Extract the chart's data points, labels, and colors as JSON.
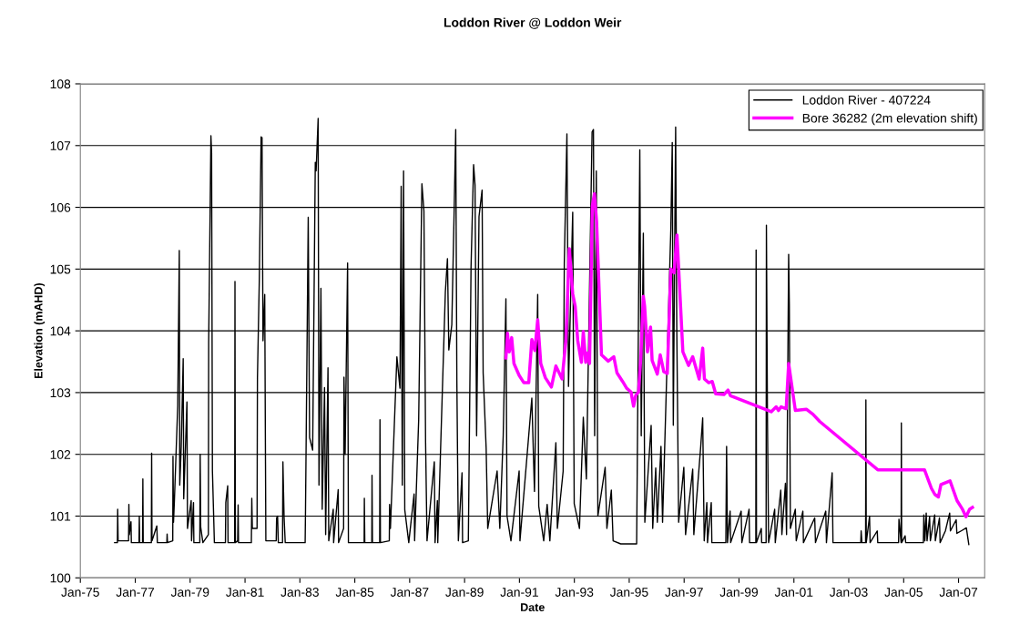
{
  "chart_data": {
    "type": "line",
    "title": "Loddon River @ Loddon Weir",
    "xlabel": "Date",
    "ylabel": "Elevation (mAHD)",
    "xlim": [
      "1975-01-01",
      "2007-12-15"
    ],
    "xticks": [
      {
        "value": "1975-01-01",
        "label": "Jan-75"
      },
      {
        "value": "1977-01-01",
        "label": "Jan-77"
      },
      {
        "value": "1979-01-01",
        "label": "Jan-79"
      },
      {
        "value": "1981-01-01",
        "label": "Jan-81"
      },
      {
        "value": "1983-01-01",
        "label": "Jan-83"
      },
      {
        "value": "1985-01-01",
        "label": "Jan-85"
      },
      {
        "value": "1987-01-01",
        "label": "Jan-87"
      },
      {
        "value": "1989-01-01",
        "label": "Jan-89"
      },
      {
        "value": "1991-01-01",
        "label": "Jan-91"
      },
      {
        "value": "1993-01-01",
        "label": "Jan-93"
      },
      {
        "value": "1995-01-01",
        "label": "Jan-95"
      },
      {
        "value": "1997-01-01",
        "label": "Jan-97"
      },
      {
        "value": "1999-01-01",
        "label": "Jan-99"
      },
      {
        "value": "2001-01-01",
        "label": "Jan-01"
      },
      {
        "value": "2003-01-01",
        "label": "Jan-03"
      },
      {
        "value": "2005-01-01",
        "label": "Jan-05"
      },
      {
        "value": "2007-01-01",
        "label": "Jan-07"
      }
    ],
    "ylim": [
      100,
      108
    ],
    "yticks": [
      100,
      101,
      102,
      103,
      104,
      105,
      106,
      107,
      108
    ],
    "grid": "y",
    "legend": "top right",
    "marker": "none",
    "line_style": "solid",
    "series": [
      {
        "name": "Loddon River - 407224",
        "color": "#000000",
        "x": [
          "1976-04-01",
          "1976-05-08",
          "1976-05-12",
          "1976-05-18",
          "1976-10-04",
          "1976-10-08",
          "1976-10-14",
          "1976-11-05",
          "1976-11-10",
          "1977-02-20",
          "1977-02-24",
          "1977-03-01",
          "1977-04-08",
          "1977-04-12",
          "1977-04-17",
          "1977-08-03",
          "1977-08-07",
          "1977-08-12",
          "1977-10-15",
          "1977-10-22",
          "1978-02-25",
          "1978-03-01",
          "1978-03-06",
          "1978-05-15",
          "1978-05-18",
          "1978-05-25",
          "1978-06-05",
          "1978-07-20",
          "1978-08-10",
          "1978-08-16",
          "1978-09-05",
          "1978-10-01",
          "1978-10-08",
          "1978-11-20",
          "1978-11-27",
          "1979-01-15",
          "1979-01-20",
          "1979-02-15",
          "1979-02-20",
          "1979-05-10",
          "1979-05-15",
          "1979-05-22",
          "1979-06-20",
          "1979-09-01",
          "1979-09-05",
          "1979-10-05",
          "1979-10-14",
          "1979-10-25",
          "1979-11-20",
          "1980-04-15",
          "1980-04-20",
          "1980-05-15",
          "1980-05-20",
          "1980-08-16",
          "1980-08-20",
          "1980-08-25",
          "1980-09-25",
          "1980-10-01",
          "1980-10-06",
          "1981-03-26",
          "1981-04-01",
          "1981-04-08",
          "1981-06-10",
          "1981-06-15",
          "1981-07-10",
          "1981-08-03",
          "1981-08-15",
          "1981-08-28",
          "1981-09-20",
          "1981-10-05",
          "1982-02-20",
          "1982-02-25",
          "1982-03-10",
          "1982-03-20",
          "1982-05-15",
          "1982-05-20",
          "1982-06-05",
          "1982-06-20",
          "1983-03-12",
          "1983-03-17",
          "1983-04-22",
          "1983-05-10",
          "1983-06-20",
          "1983-07-25",
          "1983-08-05",
          "1983-09-01",
          "1983-09-12",
          "1983-10-08",
          "1983-10-25",
          "1983-11-25",
          "1983-12-10",
          "1984-01-10",
          "1984-01-20",
          "1984-03-20",
          "1984-03-25",
          "1984-05-25",
          "1984-05-30",
          "1984-08-05",
          "1984-08-10",
          "1984-08-25",
          "1984-09-27",
          "1984-10-08",
          "1985-05-05",
          "1985-05-08",
          "1985-05-14",
          "1985-08-15",
          "1985-08-18",
          "1985-08-24",
          "1985-11-28",
          "1985-12-02",
          "1985-12-08",
          "1986-04-05",
          "1986-04-09",
          "1986-04-20",
          "1986-07-15",
          "1986-08-25",
          "1986-09-10",
          "1986-09-25",
          "1986-10-12",
          "1986-10-28",
          "1986-12-20",
          "1987-03-01",
          "1987-03-08",
          "1987-05-01",
          "1987-06-13",
          "1987-07-10",
          "1987-08-01",
          "1987-08-20",
          "1987-11-25",
          "1987-12-05",
          "1988-01-05",
          "1988-01-10",
          "1988-04-20",
          "1988-05-18",
          "1988-06-05",
          "1988-07-15",
          "1988-08-15",
          "1988-09-05",
          "1988-09-20",
          "1988-10-10",
          "1988-11-28",
          "1988-12-05",
          "1989-02-20",
          "1989-03-28",
          "1989-05-01",
          "1989-05-20",
          "1989-06-10",
          "1989-07-12",
          "1989-08-22",
          "1989-09-05",
          "1989-10-15",
          "1989-11-05",
          "1990-03-10",
          "1990-04-15",
          "1990-05-30",
          "1990-07-05",
          "1990-07-20",
          "1990-09-10",
          "1990-12-28",
          "1991-01-08",
          "1991-06-15",
          "1991-07-20",
          "1991-09-01",
          "1991-09-15",
          "1991-11-20",
          "1992-01-05",
          "1992-02-10",
          "1992-04-30",
          "1992-05-20",
          "1992-08-05",
          "1992-08-20",
          "1992-09-24",
          "1992-10-15",
          "1992-12-10",
          "1992-12-30",
          "1993-03-10",
          "1993-04-30",
          "1993-06-10",
          "1993-08-25",
          "1993-09-12",
          "1993-09-28",
          "1993-10-20",
          "1993-11-10",
          "1994-02-15",
          "1994-03-10",
          "1994-05-08",
          "1994-06-01",
          "1994-09-10",
          "1995-04-10",
          "1995-05-22",
          "1995-06-10",
          "1995-07-08",
          "1995-07-28",
          "1995-10-20",
          "1995-11-10",
          "1995-12-20",
          "1996-01-10",
          "1996-02-28",
          "1996-03-20",
          "1996-07-08",
          "1996-07-27",
          "1996-08-10",
          "1996-09-10",
          "1996-09-25",
          "1996-10-20",
          "1996-12-28",
          "1997-01-20",
          "1997-04-25",
          "1997-05-10",
          "1997-08-10",
          "1997-09-05",
          "1997-09-25",
          "1997-10-30",
          "1997-11-08",
          "1997-12-28",
          "1998-01-05",
          "1998-07-10",
          "1998-07-20",
          "1998-08-01",
          "1998-09-05",
          "1998-09-12",
          "1999-01-30",
          "1999-02-08",
          "1999-05-15",
          "1999-05-22",
          "1999-08-13",
          "1999-08-17",
          "1999-08-22",
          "1999-10-25",
          "1999-10-30",
          "1999-12-28",
          "2000-01-01",
          "2000-01-15",
          "2000-01-30",
          "2000-04-20",
          "2000-04-28",
          "2000-07-10",
          "2000-07-25",
          "2000-09-10",
          "2000-09-25",
          "2000-10-23",
          "2000-11-01",
          "2000-11-15",
          "2001-01-20",
          "2001-02-01",
          "2001-04-30",
          "2001-05-08",
          "2001-10-05",
          "2001-10-15",
          "2002-03-01",
          "2002-03-10",
          "2002-05-25",
          "2002-06-05",
          "2003-06-10",
          "2003-06-15",
          "2003-06-25",
          "2003-08-13",
          "2003-08-17",
          "2003-08-22",
          "2003-10-05",
          "2003-10-12",
          "2004-01-15",
          "2004-01-22",
          "2004-10-25",
          "2004-10-30",
          "2004-11-28",
          "2004-12-01",
          "2004-12-05",
          "2005-01-20",
          "2005-01-28",
          "2005-09-20",
          "2005-09-26",
          "2005-10-10",
          "2005-10-28",
          "2005-11-08",
          "2005-12-12",
          "2005-12-22",
          "2006-02-18",
          "2006-02-26",
          "2006-04-22",
          "2006-05-01",
          "2006-07-10",
          "2006-09-05",
          "2006-09-15",
          "2006-12-01",
          "2006-12-10",
          "2007-02-05",
          "2007-04-15",
          "2007-05-18"
        ],
        "values": [
          100.57,
          100.57,
          101.11,
          100.6,
          100.6,
          101.19,
          100.7,
          100.91,
          100.57,
          100.57,
          101.0,
          100.57,
          100.57,
          101.6,
          100.57,
          100.57,
          102.02,
          100.6,
          100.84,
          100.57,
          100.57,
          100.71,
          100.57,
          100.6,
          101.97,
          100.9,
          101.22,
          102.78,
          105.3,
          101.5,
          102.13,
          103.55,
          101.28,
          102.85,
          100.8,
          101.25,
          100.6,
          101.22,
          100.57,
          100.57,
          102.0,
          100.82,
          100.57,
          100.7,
          103.8,
          107.16,
          106.88,
          101.73,
          100.57,
          100.57,
          101.22,
          101.49,
          100.57,
          100.57,
          104.8,
          100.57,
          100.6,
          101.18,
          100.57,
          100.57,
          101.29,
          100.8,
          100.8,
          103.24,
          104.83,
          107.14,
          107.13,
          103.84,
          104.59,
          100.6,
          100.6,
          100.97,
          101.0,
          100.57,
          100.57,
          101.88,
          100.97,
          100.57,
          100.57,
          101.11,
          105.84,
          102.27,
          102.07,
          106.73,
          106.59,
          107.44,
          101.5,
          104.69,
          101.11,
          103.08,
          100.7,
          103.4,
          100.6,
          101.11,
          100.57,
          101.43,
          100.57,
          100.8,
          103.25,
          102.0,
          105.1,
          100.57,
          100.57,
          101.29,
          100.57,
          100.57,
          101.66,
          100.57,
          100.57,
          102.56,
          100.57,
          100.6,
          101.19,
          100.8,
          103.58,
          103.07,
          106.34,
          101.5,
          106.59,
          101.1,
          100.57,
          101.36,
          100.6,
          102.56,
          106.38,
          105.94,
          102.2,
          100.6,
          101.88,
          100.57,
          101.25,
          100.57,
          104.63,
          105.17,
          103.69,
          104.1,
          105.94,
          107.26,
          103.21,
          100.6,
          101.7,
          100.57,
          100.6,
          105.04,
          106.69,
          106.36,
          102.3,
          105.85,
          106.28,
          103.32,
          102.1,
          100.8,
          101.73,
          100.8,
          102.3,
          104.52,
          101.0,
          100.6,
          101.73,
          100.6,
          102.91,
          101.4,
          104.59,
          101.16,
          100.6,
          101.19,
          100.6,
          102.19,
          100.8,
          101.73,
          105.09,
          107.19,
          103.1,
          105.92,
          101.2,
          100.8,
          102.6,
          101.6,
          107.22,
          107.26,
          102.3,
          106.59,
          101.0,
          101.79,
          100.8,
          101.42,
          100.6,
          100.55,
          100.55,
          106.93,
          102.3,
          105.58,
          100.9,
          102.47,
          100.8,
          101.78,
          100.9,
          102.13,
          100.9,
          105.65,
          107.05,
          102.47,
          107.3,
          104.06,
          100.9,
          101.79,
          100.7,
          101.76,
          100.7,
          102.13,
          102.59,
          100.6,
          101.22,
          100.57,
          101.22,
          100.57,
          100.57,
          102.13,
          100.57,
          101.08,
          100.57,
          101.08,
          100.57,
          101.11,
          100.57,
          100.57,
          105.31,
          100.57,
          100.8,
          100.57,
          100.57,
          105.71,
          102.59,
          100.57,
          101.11,
          100.57,
          101.42,
          100.7,
          101.53,
          100.7,
          105.24,
          104.43,
          100.8,
          101.11,
          100.6,
          101.08,
          100.57,
          100.97,
          100.57,
          101.08,
          100.57,
          101.7,
          100.57,
          100.57,
          100.76,
          100.57,
          100.57,
          102.88,
          100.57,
          101.0,
          100.57,
          100.76,
          100.57,
          100.57,
          100.95,
          100.57,
          102.51,
          100.57,
          100.68,
          100.57,
          100.57,
          101.02,
          100.6,
          101.05,
          100.6,
          100.99,
          100.6,
          101.02,
          100.6,
          100.97,
          100.57,
          100.76,
          101.05,
          100.76,
          100.94,
          100.72,
          100.76,
          100.81,
          100.54
        ]
      },
      {
        "name": "Bore 36282 (2m elevation shift)",
        "color": "#ff00ff",
        "x": [
          "1990-07-05",
          "1990-07-26",
          "1990-08-18",
          "1990-09-20",
          "1990-10-20",
          "1990-12-28",
          "1991-03-01",
          "1991-05-05",
          "1991-06-15",
          "1991-07-25",
          "1991-09-01",
          "1991-10-12",
          "1991-12-12",
          "1992-03-01",
          "1992-04-30",
          "1992-07-22",
          "1992-09-10",
          "1992-10-26",
          "1992-12-10",
          "1993-01-12",
          "1993-02-15",
          "1993-04-05",
          "1993-04-30",
          "1993-06-01",
          "1993-06-20",
          "1993-07-22",
          "1993-08-28",
          "1993-09-25",
          "1993-10-24",
          "1993-12-28",
          "1994-02-20",
          "1994-03-28",
          "1994-06-10",
          "1994-07-22",
          "1994-10-05",
          "1994-11-28",
          "1995-01-25",
          "1995-02-28",
          "1995-03-28",
          "1995-05-05",
          "1995-06-05",
          "1995-07-08",
          "1995-07-25",
          "1995-09-01",
          "1995-10-12",
          "1995-11-02",
          "1996-01-10",
          "1996-02-18",
          "1996-04-05",
          "1996-05-22",
          "1996-07-08",
          "1996-08-20",
          "1996-09-28",
          "1996-12-15",
          "1997-03-01",
          "1997-04-25",
          "1997-07-20",
          "1997-09-05",
          "1997-09-28",
          "1997-11-25",
          "1998-01-10",
          "1998-02-25",
          "1998-06-15",
          "1998-08-08",
          "1998-09-10",
          "2000-03-05",
          "2000-05-10",
          "2000-06-10",
          "2000-07-15",
          "2000-09-20",
          "2000-10-23",
          "2001-01-20",
          "2001-06-15",
          "2001-09-10",
          "2001-12-12",
          "2004-01-22",
          "2005-10-05",
          "2006-01-05",
          "2006-02-20",
          "2006-04-08",
          "2006-05-12",
          "2006-09-10",
          "2006-12-12",
          "2007-02-18",
          "2007-04-10",
          "2007-05-28",
          "2007-07-05"
        ],
        "values": [
          103.56,
          103.96,
          103.66,
          103.89,
          103.47,
          103.28,
          103.16,
          103.16,
          103.86,
          103.68,
          104.18,
          103.47,
          103.24,
          103.09,
          103.43,
          103.22,
          103.84,
          105.33,
          104.6,
          104.4,
          103.84,
          103.49,
          103.99,
          103.49,
          103.64,
          103.47,
          106.02,
          106.22,
          105.77,
          103.61,
          103.55,
          103.51,
          103.58,
          103.32,
          103.18,
          103.07,
          103.01,
          102.78,
          102.95,
          103.01,
          103.58,
          104.56,
          104.4,
          103.66,
          104.06,
          103.52,
          103.3,
          103.61,
          103.34,
          103.31,
          105.0,
          104.94,
          105.55,
          103.66,
          103.44,
          103.58,
          103.22,
          103.72,
          103.22,
          103.16,
          103.18,
          102.98,
          102.97,
          103.04,
          102.95,
          102.69,
          102.77,
          102.71,
          102.77,
          102.74,
          103.47,
          102.71,
          102.73,
          102.65,
          102.53,
          101.75,
          101.75,
          101.45,
          101.35,
          101.31,
          101.51,
          101.57,
          101.25,
          101.12,
          100.99,
          101.11,
          101.14
        ]
      }
    ]
  }
}
